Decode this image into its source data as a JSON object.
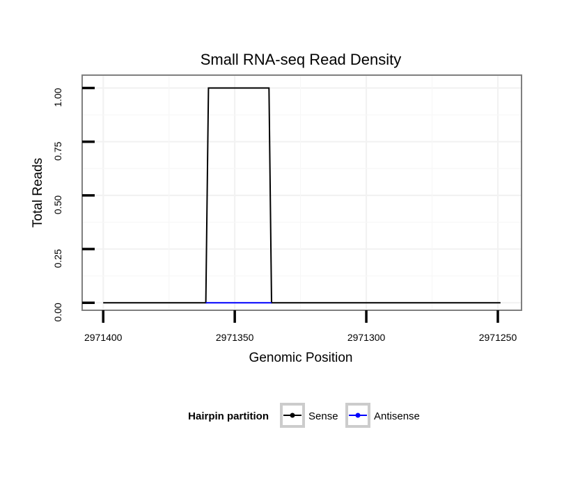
{
  "chart_data": {
    "type": "line",
    "title": "Small RNA-seq Read Density",
    "xlabel": "Genomic Position",
    "ylabel": "Total Reads",
    "x_reversed": true,
    "xlim": [
      2971408,
      2971241
    ],
    "ylim": [
      -0.035,
      1.06
    ],
    "x_ticks": [
      2971400,
      2971350,
      2971300,
      2971250
    ],
    "x_tick_labels": [
      "2971400",
      "2971350",
      "2971300",
      "2971250"
    ],
    "y_ticks": [
      0,
      0.25,
      0.5,
      0.75,
      1
    ],
    "y_tick_labels": [
      "0.00",
      "0.25",
      "0.50",
      "0.75",
      "1.00"
    ],
    "grid": true,
    "legend": {
      "title": "Hairpin partition",
      "placement": "bottom"
    },
    "series": [
      {
        "name": "Sense",
        "color": "#000000",
        "x": [
          2971400,
          2971361,
          2971360,
          2971337,
          2971336,
          2971249
        ],
        "y": [
          0,
          0,
          1,
          1,
          0,
          0
        ]
      },
      {
        "name": "Antisense",
        "color": "#0000ff",
        "x": [
          2971361,
          2971336
        ],
        "y": [
          0,
          0
        ]
      }
    ]
  }
}
